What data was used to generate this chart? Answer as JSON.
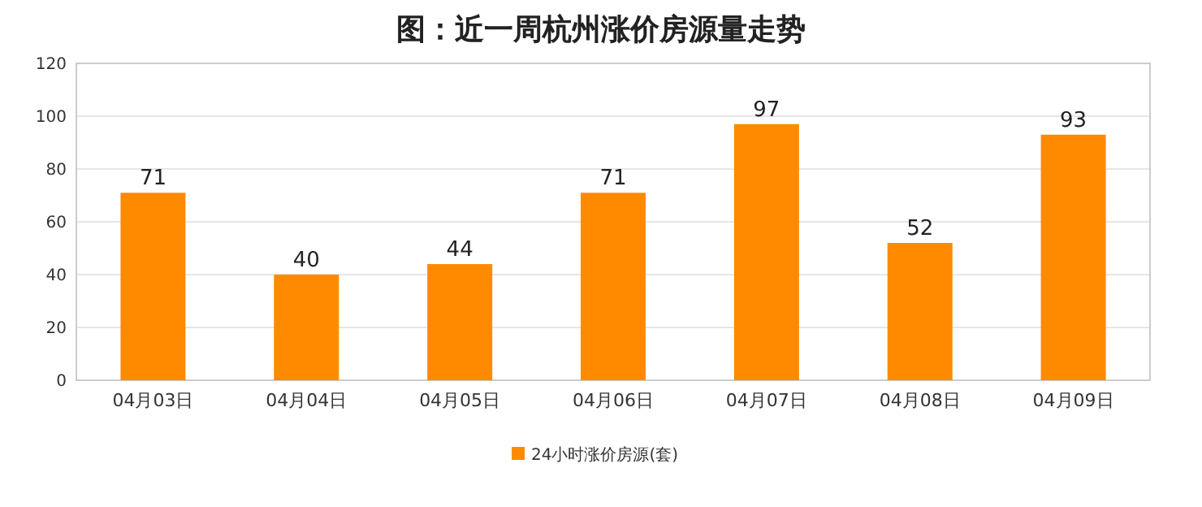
{
  "chart_data": {
    "type": "bar",
    "title": "图：近一周杭州涨价房源量走势",
    "categories": [
      "04月03日",
      "04月04日",
      "04月05日",
      "04月06日",
      "04月07日",
      "04月08日",
      "04月09日"
    ],
    "series": [
      {
        "name": "24小时涨价房源(套)",
        "color": "#ff8a00",
        "values": [
          71,
          40,
          44,
          71,
          97,
          52,
          93
        ]
      }
    ],
    "ylim": [
      0,
      120
    ],
    "yticks": [
      0,
      20,
      40,
      60,
      80,
      100,
      120
    ],
    "grid": "y",
    "data_labels": true,
    "legend": "bottom"
  }
}
